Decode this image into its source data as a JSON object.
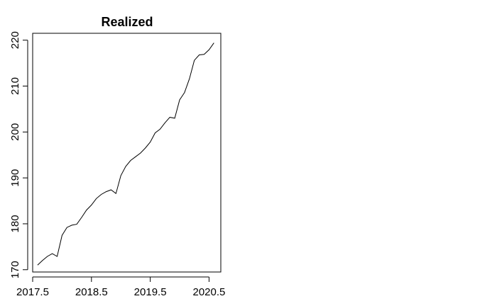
{
  "chart_data": {
    "type": "line",
    "title": "Realized",
    "xlabel": "",
    "ylabel": "",
    "grid": false,
    "xlim": [
      2017.5,
      2020.7
    ],
    "ylim": [
      169.5,
      221.5
    ],
    "xticks": [
      2017.5,
      2018.5,
      2019.5,
      2020.5
    ],
    "xtick_labels": [
      "2017.5",
      "2018.5",
      "2019.5",
      "2020.5"
    ],
    "yticks": [
      170,
      180,
      190,
      200,
      210,
      220
    ],
    "ytick_labels": [
      "170",
      "180",
      "190",
      "200",
      "210",
      "220"
    ],
    "series": [
      {
        "color": "#000000",
        "x": [
          2017.5833,
          2017.6667,
          2017.75,
          2017.8333,
          2017.9167,
          2018.0,
          2018.0833,
          2018.1667,
          2018.25,
          2018.3333,
          2018.4167,
          2018.5,
          2018.5833,
          2018.6667,
          2018.75,
          2018.8333,
          2018.9167,
          2019.0,
          2019.0833,
          2019.1667,
          2019.25,
          2019.3333,
          2019.4167,
          2019.5,
          2019.5833,
          2019.6667,
          2019.75,
          2019.8333,
          2019.9167,
          2020.0,
          2020.0833,
          2020.1667,
          2020.25,
          2020.3333,
          2020.4167,
          2020.5,
          2020.5833
        ],
        "values": [
          171.0,
          172.0,
          172.9,
          173.5,
          172.9,
          177.5,
          179.2,
          179.7,
          179.9,
          181.4,
          183.0,
          184.1,
          185.5,
          186.4,
          187.0,
          187.4,
          186.6,
          190.5,
          192.5,
          193.8,
          194.6,
          195.4,
          196.5,
          197.8,
          199.8,
          200.6,
          202.0,
          203.2,
          203.0,
          207.0,
          208.6,
          211.6,
          215.6,
          216.8,
          216.9,
          217.9,
          219.4
        ]
      }
    ]
  }
}
